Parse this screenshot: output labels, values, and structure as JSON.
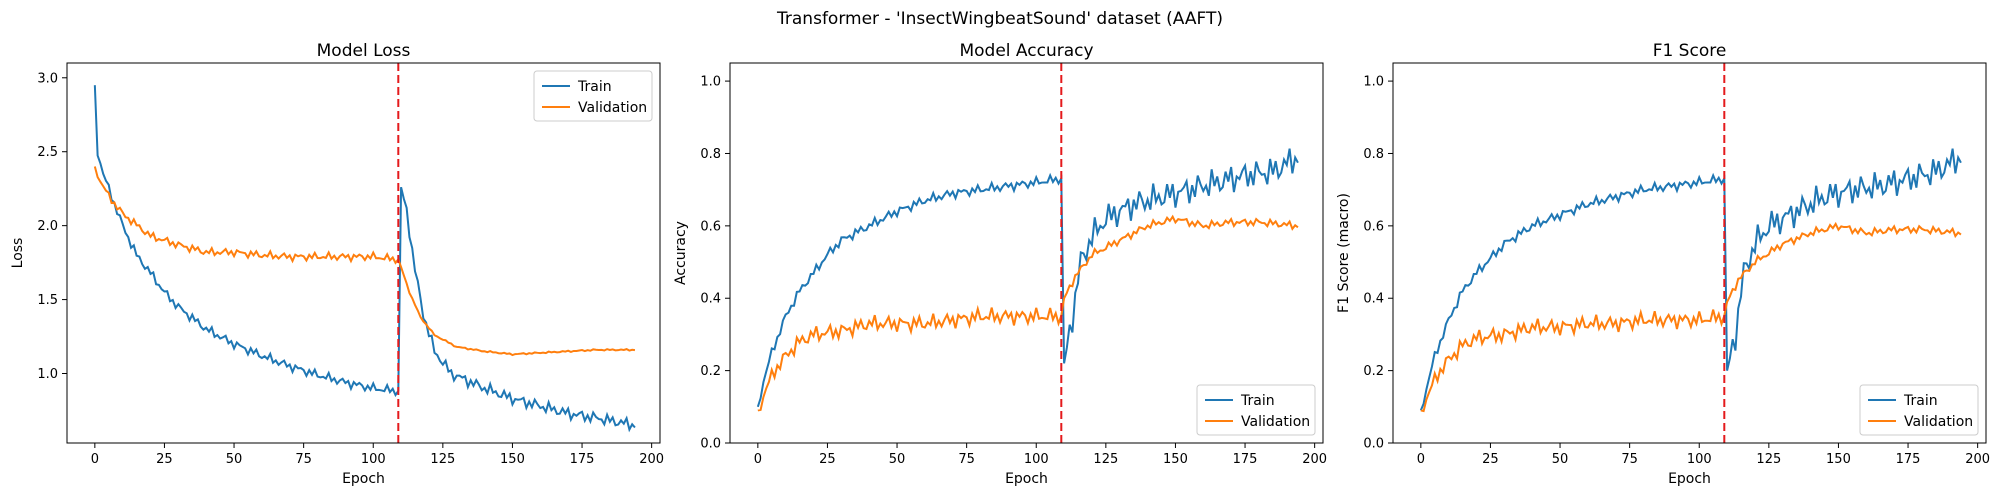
{
  "figure_title": "Transformer - 'InsectWingbeatSound' dataset (AAFT)",
  "colors": {
    "train": "#1f77b4",
    "validation": "#ff7f0e",
    "marker": "#e41a1c"
  },
  "chart_data": [
    {
      "type": "line",
      "title": "Model Loss",
      "xlabel": "Epoch",
      "ylabel": "Loss",
      "xlim": [
        -10,
        203
      ],
      "ylim": [
        0.53,
        3.1
      ],
      "xticks": [
        0,
        25,
        50,
        75,
        100,
        125,
        150,
        175,
        200
      ],
      "yticks": [
        1.0,
        1.5,
        2.0,
        2.5,
        3.0
      ],
      "ytick_labels": [
        "1.0",
        "1.5",
        "2.0",
        "2.5",
        "3.0"
      ],
      "legend_loc": "upper right",
      "vline_x": 109,
      "series": [
        {
          "name": "Train",
          "anchors": [
            [
              0,
              2.95
            ],
            [
              1,
              2.5
            ],
            [
              3,
              2.35
            ],
            [
              6,
              2.2
            ],
            [
              10,
              2.0
            ],
            [
              15,
              1.8
            ],
            [
              20,
              1.68
            ],
            [
              25,
              1.55
            ],
            [
              30,
              1.45
            ],
            [
              40,
              1.3
            ],
            [
              50,
              1.2
            ],
            [
              60,
              1.12
            ],
            [
              70,
              1.05
            ],
            [
              80,
              0.99
            ],
            [
              90,
              0.94
            ],
            [
              100,
              0.9
            ],
            [
              109,
              0.88
            ],
            [
              110,
              2.26
            ],
            [
              112,
              2.1
            ],
            [
              115,
              1.7
            ],
            [
              118,
              1.4
            ],
            [
              122,
              1.15
            ],
            [
              128,
              1.0
            ],
            [
              140,
              0.9
            ],
            [
              150,
              0.83
            ],
            [
              160,
              0.78
            ],
            [
              170,
              0.73
            ],
            [
              180,
              0.7
            ],
            [
              194,
              0.65
            ]
          ],
          "noise_a": 0.035,
          "noise_b": 0.045
        },
        {
          "name": "Validation",
          "anchors": [
            [
              0,
              2.4
            ],
            [
              2,
              2.3
            ],
            [
              5,
              2.2
            ],
            [
              10,
              2.08
            ],
            [
              20,
              1.93
            ],
            [
              30,
              1.87
            ],
            [
              40,
              1.82
            ],
            [
              50,
              1.82
            ],
            [
              60,
              1.8
            ],
            [
              70,
              1.79
            ],
            [
              80,
              1.79
            ],
            [
              90,
              1.79
            ],
            [
              100,
              1.79
            ],
            [
              109,
              1.77
            ],
            [
              110,
              1.72
            ],
            [
              113,
              1.55
            ],
            [
              117,
              1.38
            ],
            [
              122,
              1.26
            ],
            [
              130,
              1.18
            ],
            [
              140,
              1.15
            ],
            [
              150,
              1.13
            ],
            [
              160,
              1.14
            ],
            [
              170,
              1.15
            ],
            [
              180,
              1.16
            ],
            [
              194,
              1.16
            ]
          ],
          "noise_a": 0.03,
          "noise_b": 0.006
        }
      ]
    },
    {
      "type": "line",
      "title": "Model Accuracy",
      "xlabel": "Epoch",
      "ylabel": "Accuracy",
      "xlim": [
        -10,
        203
      ],
      "ylim": [
        0.0,
        1.05
      ],
      "xticks": [
        0,
        25,
        50,
        75,
        100,
        125,
        150,
        175,
        200
      ],
      "yticks": [
        0.0,
        0.2,
        0.4,
        0.6,
        0.8,
        1.0
      ],
      "ytick_labels": [
        "0.0",
        "0.2",
        "0.4",
        "0.6",
        "0.8",
        "1.0"
      ],
      "legend_loc": "lower right",
      "vline_x": 109,
      "series": [
        {
          "name": "Train",
          "anchors": [
            [
              0,
              0.1
            ],
            [
              2,
              0.17
            ],
            [
              5,
              0.25
            ],
            [
              10,
              0.35
            ],
            [
              15,
              0.42
            ],
            [
              20,
              0.47
            ],
            [
              25,
              0.52
            ],
            [
              30,
              0.56
            ],
            [
              40,
              0.6
            ],
            [
              50,
              0.64
            ],
            [
              60,
              0.67
            ],
            [
              70,
              0.69
            ],
            [
              80,
              0.7
            ],
            [
              90,
              0.71
            ],
            [
              100,
              0.72
            ],
            [
              109,
              0.73
            ],
            [
              110,
              0.22
            ],
            [
              113,
              0.35
            ],
            [
              116,
              0.5
            ],
            [
              120,
              0.57
            ],
            [
              125,
              0.62
            ],
            [
              135,
              0.66
            ],
            [
              145,
              0.68
            ],
            [
              155,
              0.7
            ],
            [
              165,
              0.72
            ],
            [
              175,
              0.74
            ],
            [
              185,
              0.75
            ],
            [
              194,
              0.79
            ]
          ],
          "noise_a": 0.015,
          "noise_b": 0.045
        },
        {
          "name": "Validation",
          "anchors": [
            [
              0,
              0.09
            ],
            [
              3,
              0.15
            ],
            [
              6,
              0.2
            ],
            [
              10,
              0.24
            ],
            [
              15,
              0.28
            ],
            [
              20,
              0.3
            ],
            [
              30,
              0.31
            ],
            [
              40,
              0.33
            ],
            [
              50,
              0.33
            ],
            [
              60,
              0.33
            ],
            [
              70,
              0.34
            ],
            [
              80,
              0.35
            ],
            [
              90,
              0.35
            ],
            [
              100,
              0.35
            ],
            [
              109,
              0.35
            ],
            [
              110,
              0.4
            ],
            [
              114,
              0.46
            ],
            [
              120,
              0.52
            ],
            [
              130,
              0.56
            ],
            [
              140,
              0.6
            ],
            [
              150,
              0.62
            ],
            [
              160,
              0.6
            ],
            [
              170,
              0.61
            ],
            [
              180,
              0.61
            ],
            [
              194,
              0.6
            ]
          ],
          "noise_a": 0.025,
          "noise_b": 0.012
        }
      ]
    },
    {
      "type": "line",
      "title": "F1 Score",
      "xlabel": "Epoch",
      "ylabel": "F1 Score (macro)",
      "xlim": [
        -10,
        203
      ],
      "ylim": [
        0.0,
        1.05
      ],
      "xticks": [
        0,
        25,
        50,
        75,
        100,
        125,
        150,
        175,
        200
      ],
      "yticks": [
        0.0,
        0.2,
        0.4,
        0.6,
        0.8,
        1.0
      ],
      "ytick_labels": [
        "0.0",
        "0.2",
        "0.4",
        "0.6",
        "0.8",
        "1.0"
      ],
      "legend_loc": "lower right",
      "vline_x": 109,
      "series": [
        {
          "name": "Train",
          "anchors": [
            [
              0,
              0.09
            ],
            [
              2,
              0.15
            ],
            [
              5,
              0.24
            ],
            [
              10,
              0.34
            ],
            [
              15,
              0.42
            ],
            [
              20,
              0.47
            ],
            [
              25,
              0.51
            ],
            [
              30,
              0.55
            ],
            [
              40,
              0.6
            ],
            [
              50,
              0.63
            ],
            [
              60,
              0.66
            ],
            [
              70,
              0.68
            ],
            [
              80,
              0.7
            ],
            [
              90,
              0.71
            ],
            [
              100,
              0.72
            ],
            [
              109,
              0.73
            ],
            [
              110,
              0.2
            ],
            [
              113,
              0.3
            ],
            [
              116,
              0.47
            ],
            [
              120,
              0.55
            ],
            [
              125,
              0.6
            ],
            [
              135,
              0.64
            ],
            [
              145,
              0.68
            ],
            [
              155,
              0.7
            ],
            [
              165,
              0.71
            ],
            [
              175,
              0.73
            ],
            [
              185,
              0.75
            ],
            [
              194,
              0.79
            ]
          ],
          "noise_a": 0.015,
          "noise_b": 0.045
        },
        {
          "name": "Validation",
          "anchors": [
            [
              0,
              0.09
            ],
            [
              3,
              0.14
            ],
            [
              6,
              0.19
            ],
            [
              10,
              0.23
            ],
            [
              15,
              0.27
            ],
            [
              20,
              0.29
            ],
            [
              30,
              0.3
            ],
            [
              40,
              0.32
            ],
            [
              50,
              0.32
            ],
            [
              60,
              0.33
            ],
            [
              70,
              0.33
            ],
            [
              80,
              0.34
            ],
            [
              90,
              0.34
            ],
            [
              100,
              0.34
            ],
            [
              109,
              0.35
            ],
            [
              110,
              0.39
            ],
            [
              114,
              0.45
            ],
            [
              120,
              0.5
            ],
            [
              130,
              0.55
            ],
            [
              140,
              0.58
            ],
            [
              150,
              0.6
            ],
            [
              160,
              0.58
            ],
            [
              170,
              0.59
            ],
            [
              180,
              0.59
            ],
            [
              194,
              0.58
            ]
          ],
          "noise_a": 0.025,
          "noise_b": 0.012
        }
      ]
    }
  ]
}
